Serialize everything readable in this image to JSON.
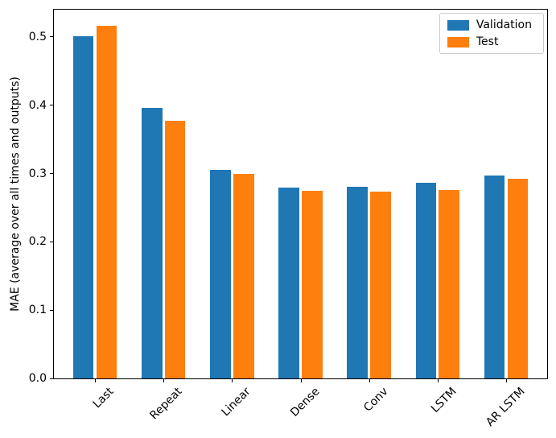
{
  "figure": {
    "background": "#ffffff",
    "axes_edge_color": "#000000",
    "legend_border_color": "#cccccc"
  },
  "chart_data": {
    "type": "bar",
    "title": "",
    "xlabel": "",
    "ylabel": "MAE (average over all times and outputs)",
    "categories": [
      "Last",
      "Repeat",
      "Linear",
      "Dense",
      "Conv",
      "LSTM",
      "AR LSTM"
    ],
    "series": [
      {
        "name": "Validation",
        "color": "#1f77b4",
        "values": [
          0.501,
          0.396,
          0.305,
          0.28,
          0.281,
          0.286,
          0.297
        ]
      },
      {
        "name": "Test",
        "color": "#ff7f0e",
        "values": [
          0.516,
          0.377,
          0.299,
          0.275,
          0.274,
          0.276,
          0.292
        ]
      }
    ],
    "ylim": [
      0,
      0.54
    ],
    "yticks": [
      0.0,
      0.1,
      0.2,
      0.3,
      0.4,
      0.5
    ],
    "ytick_labels": [
      "0.0",
      "0.1",
      "0.2",
      "0.3",
      "0.4",
      "0.5"
    ],
    "xlim": [
      -0.6,
      6.6
    ],
    "bar_offsets": [
      -0.17,
      0.17
    ],
    "bar_width": 0.3,
    "xtick_rotation_deg": 45,
    "grid": false,
    "legend_position": "upper right"
  }
}
